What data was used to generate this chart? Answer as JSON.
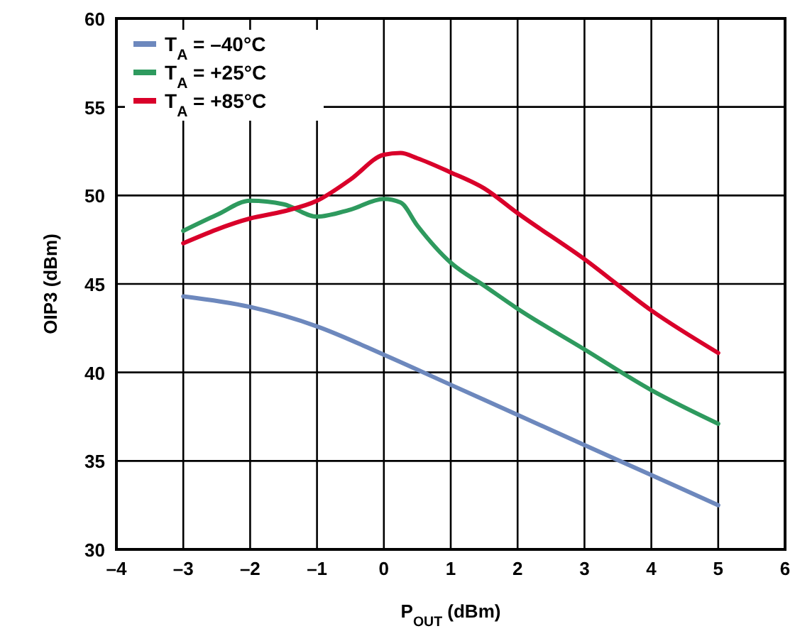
{
  "chart_data": {
    "type": "line",
    "xlabel": "P$_{OUT}$ (dBm)",
    "ylabel": "OIP3 (dBm)",
    "xlim": [
      -4,
      6
    ],
    "ylim": [
      30,
      60
    ],
    "xticks": [
      {
        "value": -4,
        "label": "–4"
      },
      {
        "value": -3,
        "label": "–3"
      },
      {
        "value": -2,
        "label": "–2"
      },
      {
        "value": -1,
        "label": "–1"
      },
      0,
      1,
      2,
      3,
      4,
      5,
      6
    ],
    "yticks": [
      30,
      35,
      40,
      45,
      50,
      55,
      60
    ],
    "grid": true,
    "legend": "top left",
    "marker": "none",
    "line_style": "solid",
    "series": [
      {
        "name": "T$_{A}$ = –40°C",
        "color": "#6d88bd",
        "x": [
          -3,
          -2,
          -1,
          0,
          1,
          2,
          3,
          4,
          5
        ],
        "values": [
          44.3,
          43.7,
          42.6,
          41.0,
          39.3,
          37.6,
          35.9,
          34.2,
          32.5
        ]
      },
      {
        "name": "T$_{A}$ = +25°C",
        "color": "#2e9a5e",
        "x": [
          -3,
          -2.5,
          -2,
          -1.5,
          -1,
          -0.5,
          0,
          0.25,
          0.5,
          1,
          1.5,
          2,
          3,
          4,
          5
        ],
        "values": [
          48.0,
          48.9,
          49.7,
          49.5,
          48.8,
          49.2,
          49.8,
          49.6,
          48.3,
          46.2,
          44.9,
          43.6,
          41.3,
          39.0,
          37.1
        ]
      },
      {
        "name": "T$_{A}$ = +85°C",
        "color": "#d9002a",
        "x": [
          -3,
          -2,
          -1.5,
          -1,
          -0.5,
          0,
          0.25,
          0.5,
          1,
          1.5,
          2,
          3,
          4,
          5
        ],
        "values": [
          47.3,
          48.7,
          49.1,
          49.7,
          50.9,
          52.3,
          52.4,
          52.1,
          51.3,
          50.4,
          49.0,
          46.4,
          43.5,
          41.1
        ]
      }
    ]
  }
}
